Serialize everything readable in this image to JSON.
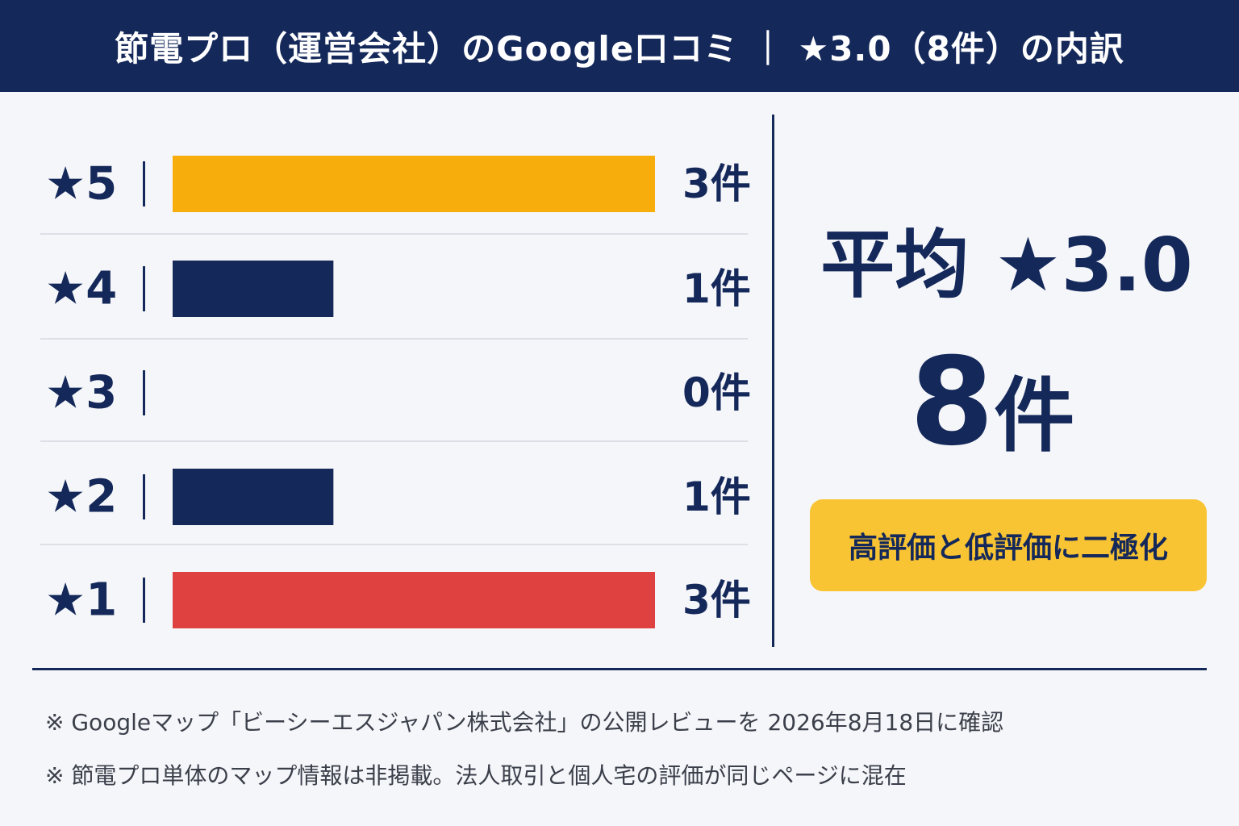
{
  "header": {
    "title": "節電プロ（運営会社）のGoogle口コミ ｜ ★3.0（8件）の内訳"
  },
  "chart_data": {
    "type": "bar",
    "orientation": "horizontal",
    "categories": [
      "★5",
      "★4",
      "★3",
      "★2",
      "★1"
    ],
    "values": [
      3,
      1,
      0,
      1,
      3
    ],
    "value_labels": [
      "3件",
      "1件",
      "0件",
      "1件",
      "3件"
    ],
    "colors": [
      "#f7ae0c",
      "#14285a",
      "#14285a",
      "#14285a",
      "#df4040"
    ],
    "xlim": [
      0,
      3
    ],
    "grid": false
  },
  "summary": {
    "average_label": "平均",
    "average_value": "★3.0",
    "total_number": "8",
    "total_unit": "件",
    "badge": "高評価と低評価に二極化"
  },
  "notes": [
    "※ Googleマップ「ビーシーエスジャパン株式会社」の公開レビューを 2026年8月18日に確認",
    "※ 節電プロ単体のマップ情報は非掲載。法人取引と個人宅の評価が同じページに混在"
  ],
  "colors": {
    "navy": "#14285a",
    "gold": "#f7ae0c",
    "red": "#df4040",
    "badge_yellow": "#f9c433",
    "background": "#f5f6f9"
  }
}
